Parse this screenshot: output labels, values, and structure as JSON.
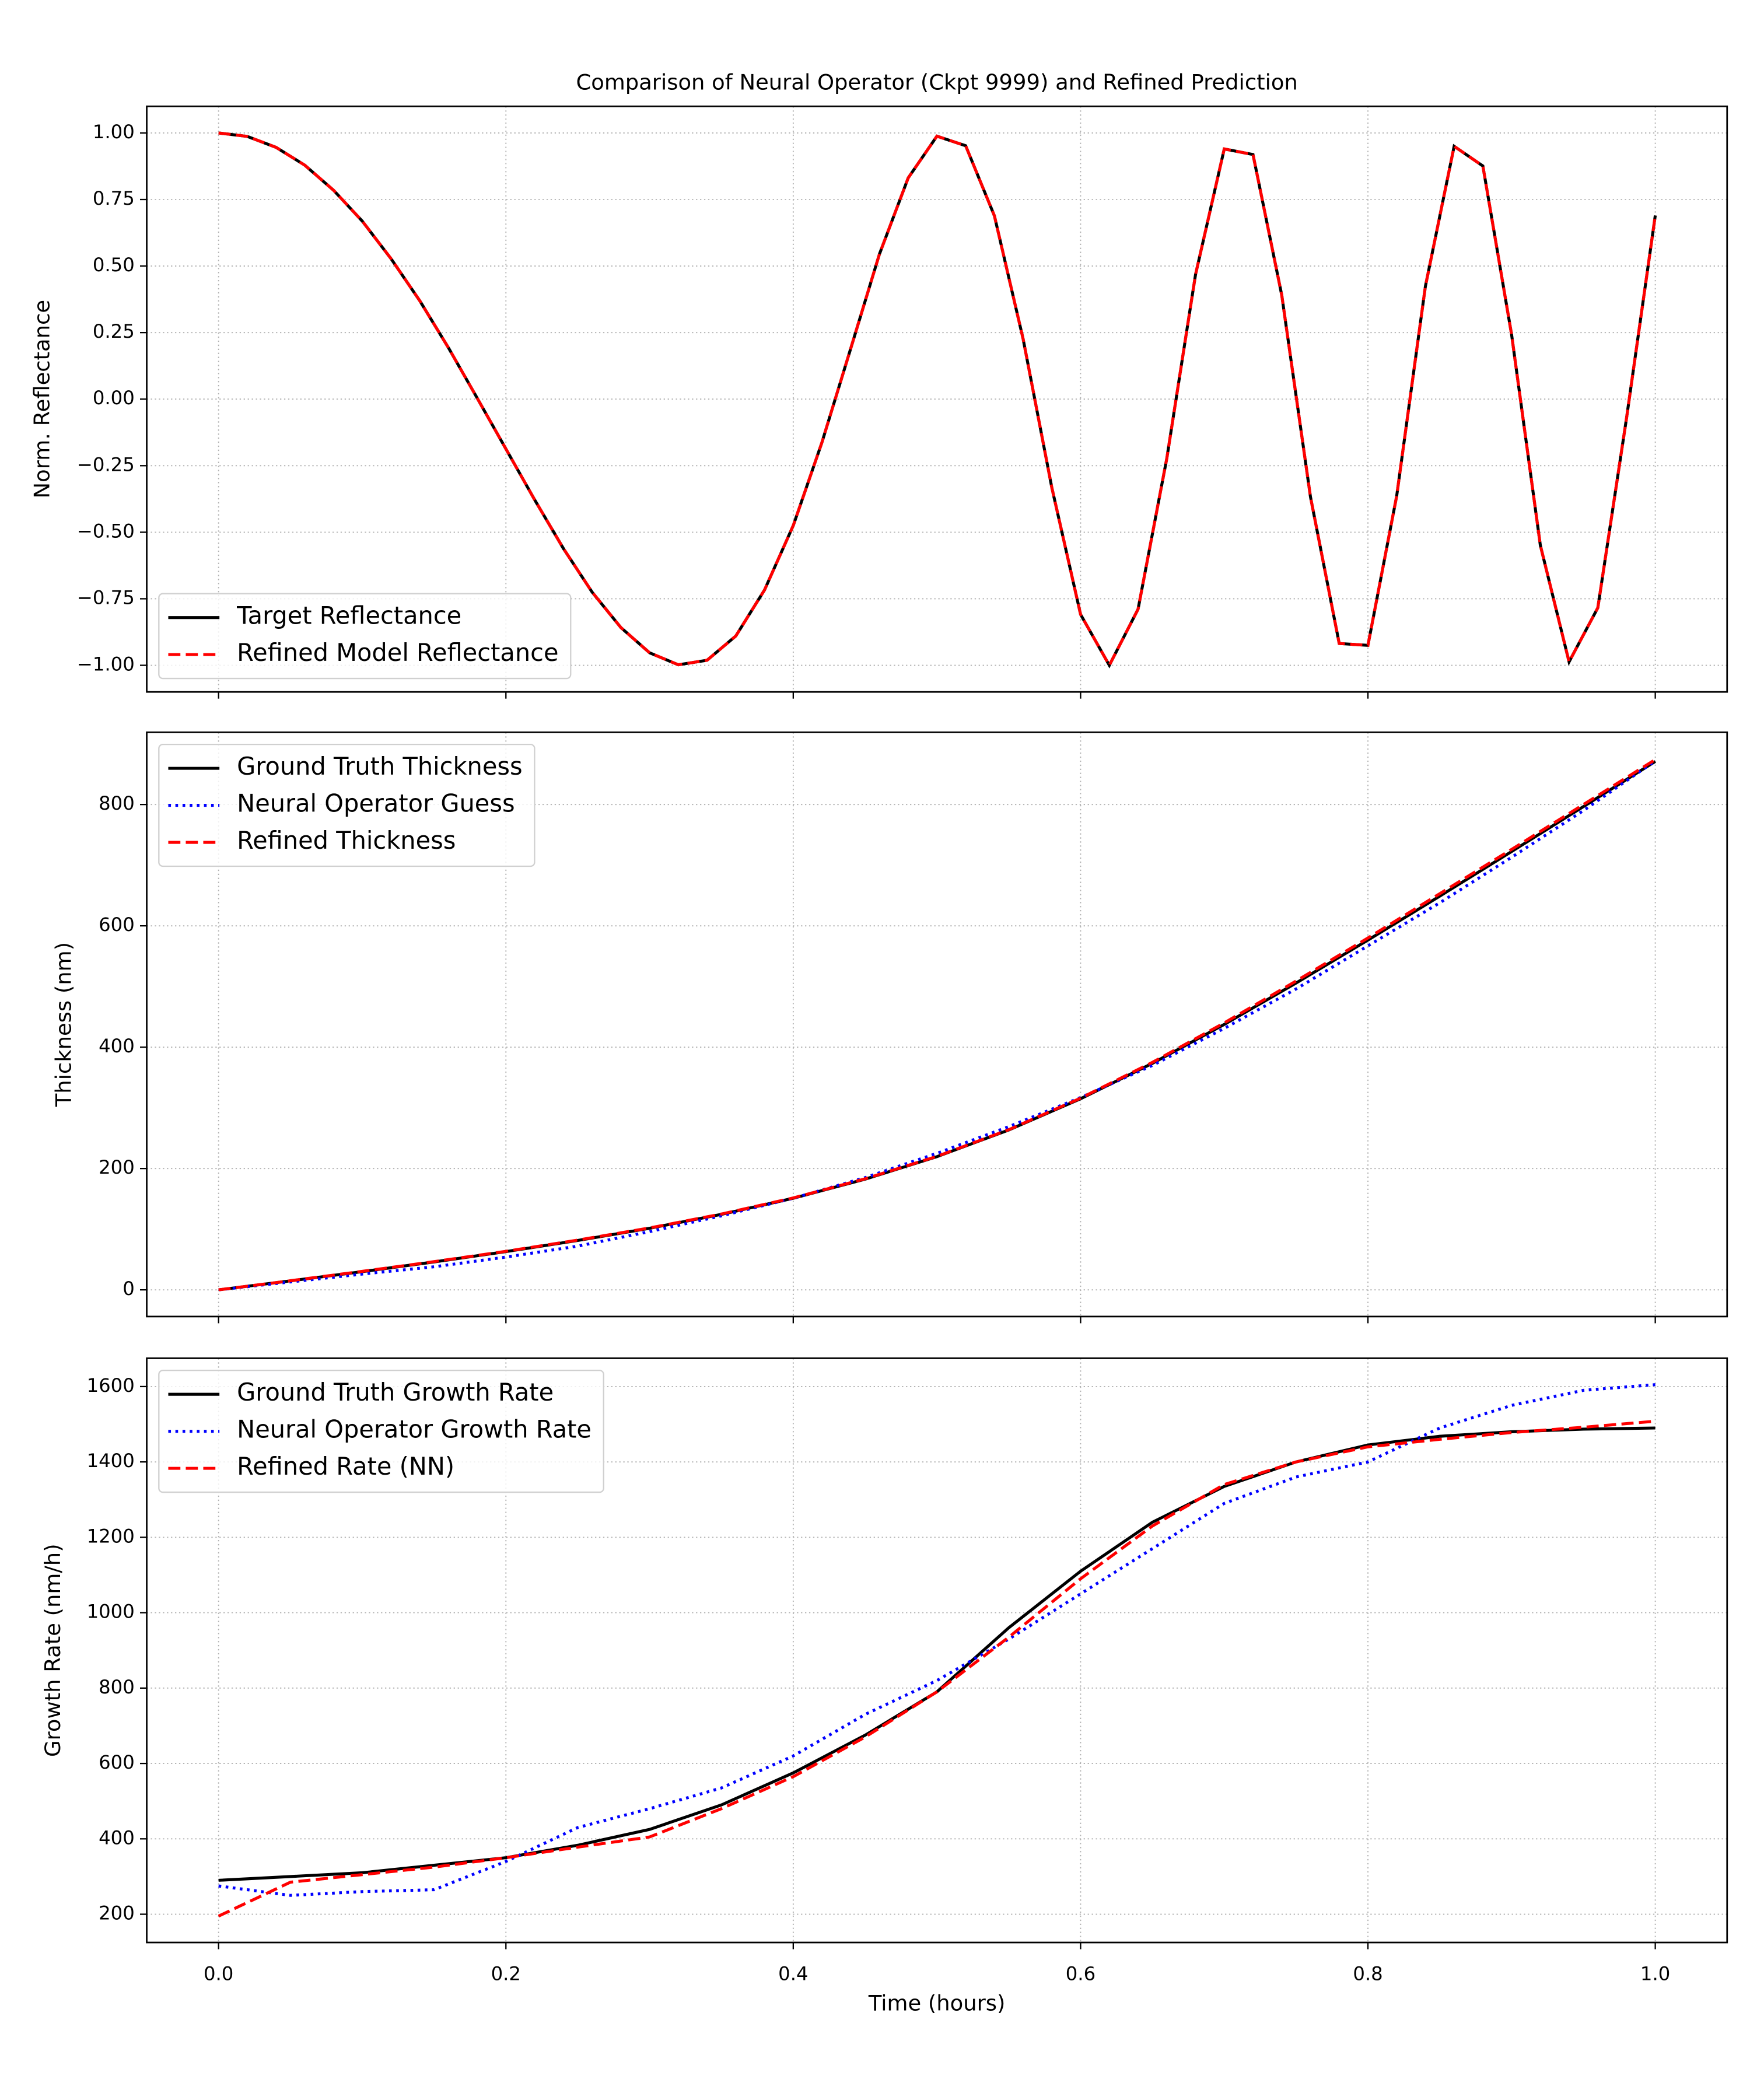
{
  "chart_data": [
    {
      "type": "line",
      "title": "Comparison of Neural Operator (Ckpt 9999) and Refined Prediction",
      "ylabel": "Norm. Reflectance",
      "x": [
        0,
        0.02,
        0.04,
        0.06,
        0.08,
        0.1,
        0.12,
        0.14,
        0.16,
        0.18,
        0.2,
        0.22,
        0.24,
        0.26,
        0.28,
        0.3,
        0.32,
        0.34,
        0.36,
        0.38,
        0.4,
        0.42,
        0.44,
        0.46,
        0.48,
        0.5,
        0.52,
        0.54,
        0.56,
        0.58,
        0.6,
        0.62,
        0.64,
        0.66,
        0.68,
        0.7,
        0.72,
        0.74,
        0.76,
        0.78,
        0.8,
        0.82,
        0.84,
        0.86,
        0.88,
        0.9,
        0.92,
        0.94,
        0.96,
        0.98,
        1
      ],
      "series": [
        {
          "name": "Target Reflectance",
          "color": "#000000",
          "linestyle": "solid",
          "values": [
            1,
            0.987,
            0.946,
            0.879,
            0.785,
            0.669,
            0.528,
            0.37,
            0.193,
            0.004,
            -0.187,
            -0.378,
            -0.561,
            -0.725,
            -0.858,
            -0.953,
            -0.998,
            -0.981,
            -0.89,
            -0.717,
            -0.475,
            -0.162,
            0.19,
            0.545,
            0.831,
            0.988,
            0.952,
            0.689,
            0.226,
            -0.333,
            -0.809,
            -1,
            -0.789,
            -0.223,
            0.468,
            0.94,
            0.919,
            0.391,
            -0.367,
            -0.918,
            -0.925,
            -0.364,
            0.424,
            0.95,
            0.876,
            0.242,
            -0.549,
            -0.987,
            -0.784,
            -0.071,
            0.69
          ]
        },
        {
          "name": "Refined Model Reflectance",
          "color": "#ff0000",
          "linestyle": "dashed",
          "values": [
            1,
            0.987,
            0.946,
            0.879,
            0.785,
            0.669,
            0.528,
            0.37,
            0.193,
            0.004,
            -0.187,
            -0.378,
            -0.561,
            -0.725,
            -0.858,
            -0.953,
            -0.998,
            -0.981,
            -0.89,
            -0.717,
            -0.475,
            -0.162,
            0.19,
            0.545,
            0.831,
            0.988,
            0.952,
            0.689,
            0.226,
            -0.333,
            -0.809,
            -1,
            -0.789,
            -0.223,
            0.468,
            0.94,
            0.919,
            0.391,
            -0.367,
            -0.918,
            -0.925,
            -0.364,
            0.424,
            0.95,
            0.876,
            0.242,
            -0.549,
            -0.987,
            -0.784,
            -0.071,
            0.69
          ]
        }
      ],
      "xlim": [
        -0.05,
        1.05
      ],
      "ylim": [
        -1.1,
        1.1
      ],
      "yticks": [
        {
          "value": -1,
          "label": "−1.00"
        },
        {
          "value": -0.75,
          "label": "−0.75"
        },
        {
          "value": -0.5,
          "label": "−0.50"
        },
        {
          "value": -0.25,
          "label": "−0.25"
        },
        {
          "value": 0,
          "label": "0.00"
        },
        0.25,
        {
          "value": 0.5,
          "label": "0.50"
        },
        0.75,
        {
          "value": 1,
          "label": "1.00"
        }
      ],
      "grid": true,
      "legend": "lower left"
    },
    {
      "type": "line",
      "ylabel": "Thickness (nm)",
      "x": [
        0,
        0.05,
        0.1,
        0.15,
        0.2,
        0.25,
        0.3,
        0.35,
        0.4,
        0.45,
        0.5,
        0.55,
        0.6,
        0.65,
        0.7,
        0.75,
        0.8,
        0.85,
        0.9,
        0.95,
        1
      ],
      "series": [
        {
          "name": "Ground Truth Thickness",
          "color": "#000000",
          "linestyle": "solid",
          "values": [
            0,
            14.8,
            30,
            46,
            63,
            81.4,
            101.5,
            124.4,
            151,
            182.4,
            219.5,
            263.5,
            315,
            373.4,
            437.5,
            505.8,
            576.5,
            649,
            722.5,
            796.6,
            871
          ]
        },
        {
          "name": "Neural Operator Guess",
          "color": "#0000ff",
          "linestyle": "dotted",
          "values": [
            0,
            13,
            26,
            38,
            54,
            72,
            96,
            122,
            151,
            185,
            225,
            269,
            317,
            370,
            431,
            496,
            567,
            638,
            713,
            790,
            872
          ]
        },
        {
          "name": "Refined Thickness",
          "color": "#ff0000",
          "linestyle": "dashed",
          "values": [
            0,
            15,
            30.5,
            46.5,
            63.5,
            82,
            102,
            125,
            151.5,
            183,
            220,
            264,
            316,
            375,
            440,
            509,
            580,
            653,
            726,
            800,
            874
          ]
        }
      ],
      "xlim": [
        -0.05,
        1.05
      ],
      "ylim": [
        -44,
        919
      ],
      "yticks": [
        0,
        200,
        400,
        600,
        800
      ],
      "grid": true,
      "legend": "upper left"
    },
    {
      "type": "line",
      "ylabel": "Growth Rate (nm/h)",
      "xlabel": "Time (hours)",
      "x": [
        0,
        0.05,
        0.1,
        0.15,
        0.2,
        0.25,
        0.3,
        0.35,
        0.4,
        0.45,
        0.5,
        0.55,
        0.6,
        0.65,
        0.7,
        0.75,
        0.8,
        0.85,
        0.9,
        0.95,
        1
      ],
      "series": [
        {
          "name": "Ground Truth Growth Rate",
          "color": "#000000",
          "linestyle": "solid",
          "values": [
            290,
            300,
            310,
            330,
            350,
            383,
            425,
            490,
            575,
            675,
            790,
            960,
            1110,
            1240,
            1335,
            1400,
            1445,
            1468,
            1480,
            1487,
            1490
          ]
        },
        {
          "name": "Neural Operator Growth Rate",
          "color": "#0000ff",
          "linestyle": "dotted",
          "values": [
            275,
            250,
            260,
            265,
            340,
            430,
            480,
            535,
            620,
            730,
            820,
            930,
            1050,
            1170,
            1290,
            1360,
            1400,
            1490,
            1550,
            1590,
            1605
          ]
        },
        {
          "name": "Refined Rate (NN)",
          "color": "#ff0000",
          "linestyle": "dashed",
          "values": [
            195,
            285,
            305,
            325,
            350,
            378,
            405,
            480,
            565,
            670,
            790,
            935,
            1090,
            1230,
            1340,
            1400,
            1440,
            1460,
            1478,
            1492,
            1508
          ]
        }
      ],
      "xlim": [
        -0.05,
        1.05
      ],
      "ylim": [
        125,
        1675
      ],
      "xticks": [
        {
          "value": 0,
          "label": "0.0"
        },
        0.2,
        0.4,
        0.6,
        0.8,
        {
          "value": 1,
          "label": "1.0"
        }
      ],
      "yticks": [
        200,
        400,
        600,
        800,
        1000,
        1200,
        1400,
        1600
      ],
      "grid": true,
      "legend": "upper left"
    }
  ]
}
